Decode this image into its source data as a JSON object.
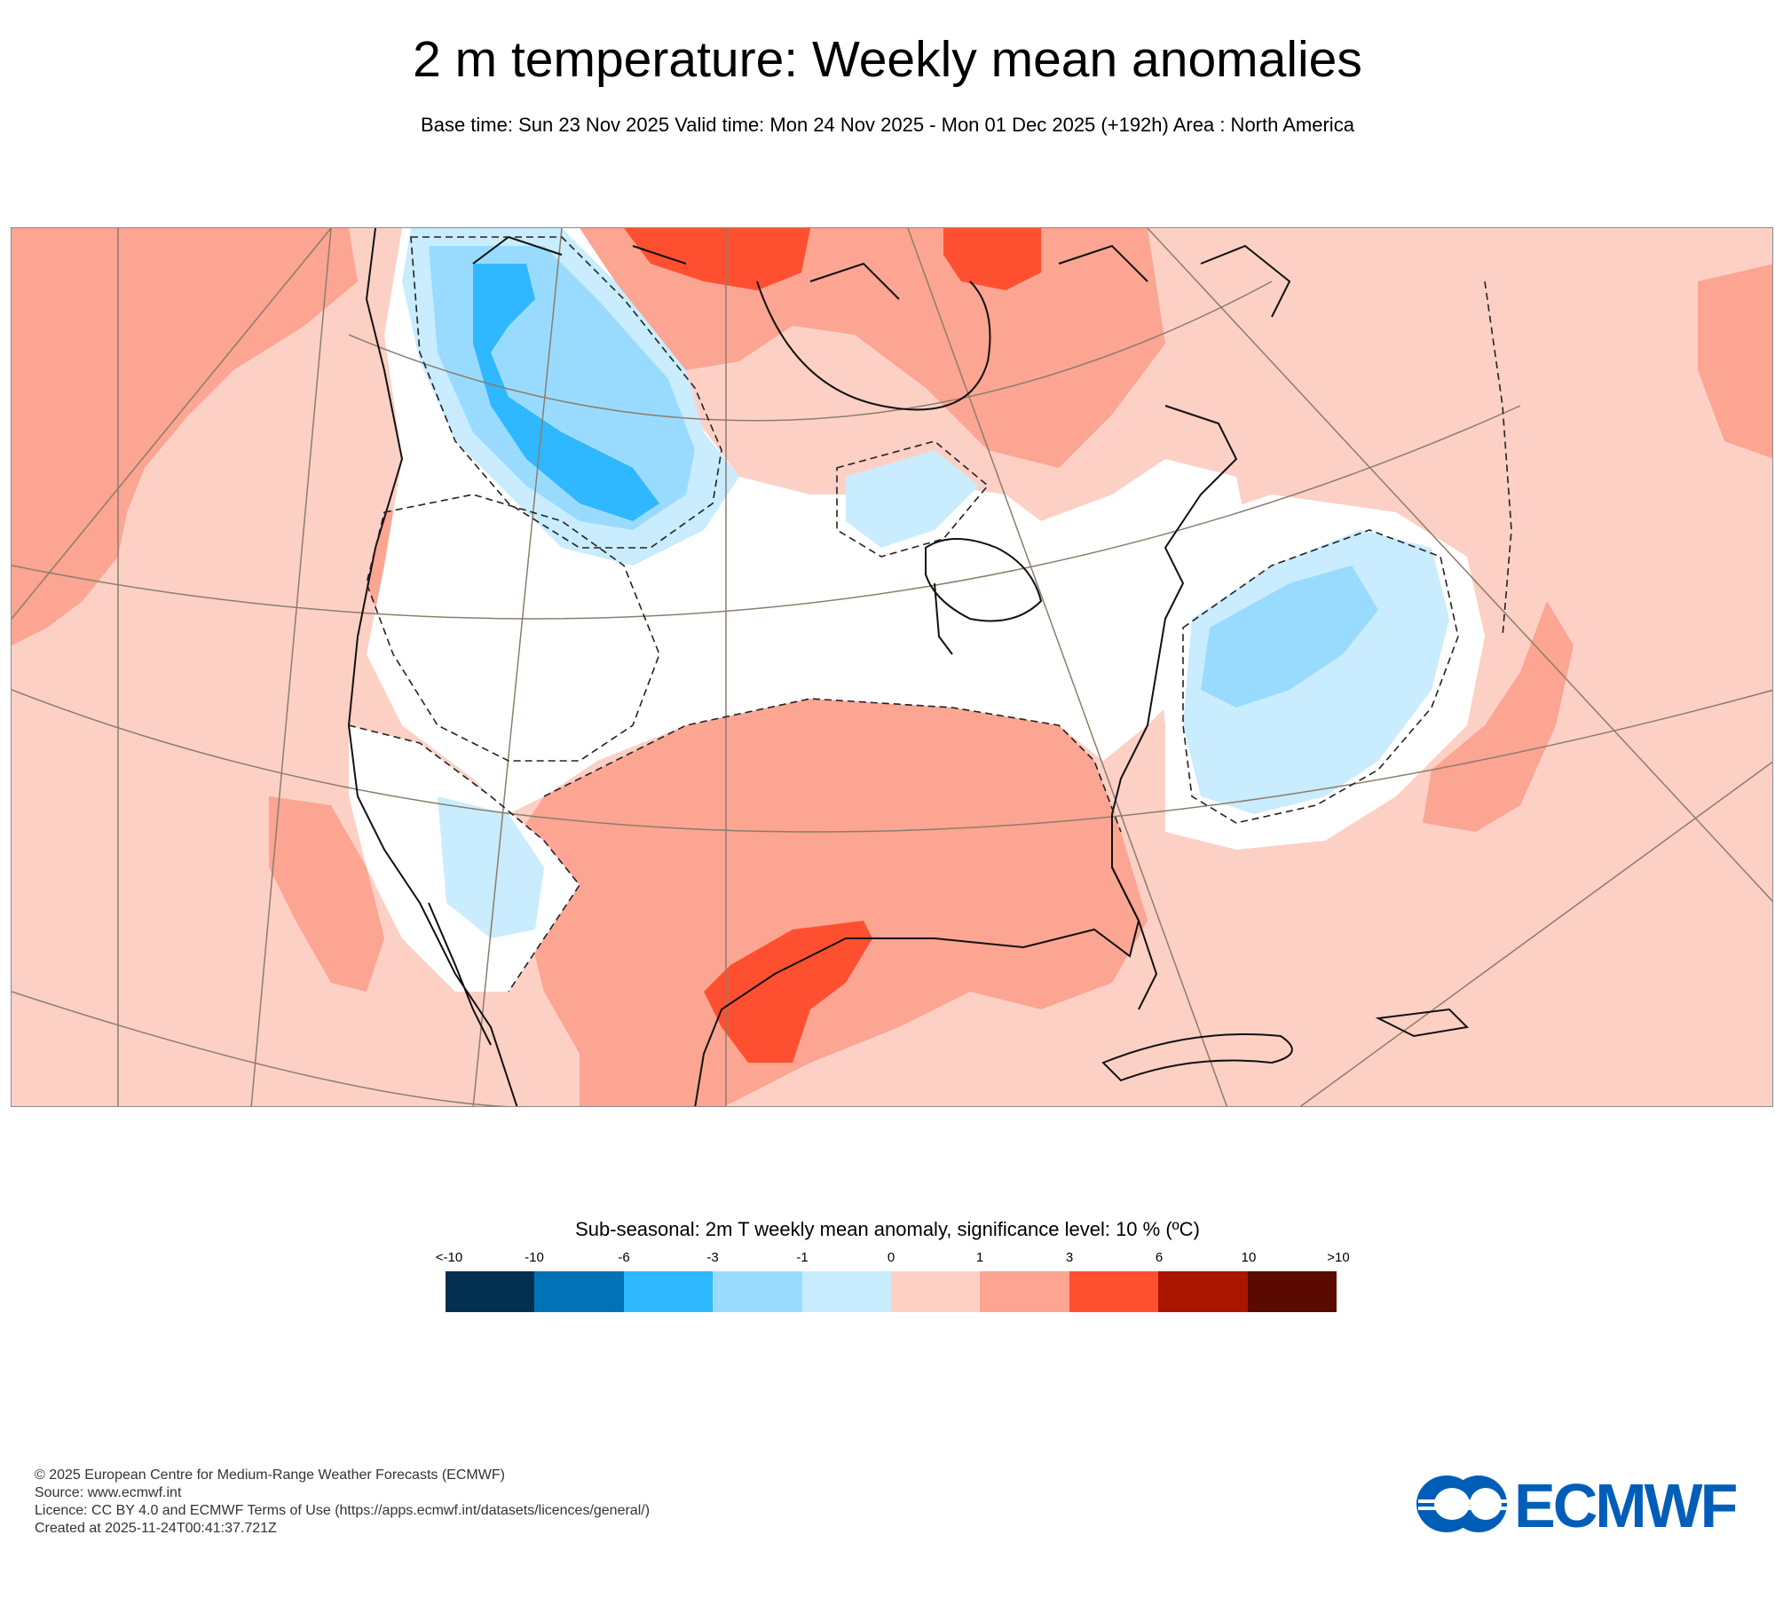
{
  "title": "2 m temperature: Weekly mean anomalies",
  "subtitle": "Base time: Sun 23 Nov 2025 Valid time: Mon 24 Nov 2025 - Mon 01 Dec 2025 (+192h) Area : North America",
  "map": {
    "region": "North America",
    "anomaly_colors": {
      "lt_minus10": "#04304f",
      "minus10_minus6": "#0072b5",
      "minus6_minus3": "#2fb8ff",
      "minus3_minus1": "#99dbff",
      "minus1_0": "#c9ecfe",
      "near_zero": "#ffffff",
      "zero_1": "#fdd0c6",
      "one_3": "#fba592",
      "three_6": "#fe5030",
      "six_10": "#ab1600",
      "gt_10": "#5b0a00"
    }
  },
  "legend": {
    "title": "Sub-seasonal: 2m T weekly mean anomaly, significance level: 10 % (ºC)",
    "ticks": [
      "<-10",
      "-10",
      "-6",
      "-3",
      "-1",
      "0",
      "1",
      "3",
      "6",
      "10",
      ">10"
    ],
    "colors": [
      "#04304f",
      "#0072b5",
      "#2fb8ff",
      "#99dbff",
      "#c9ecfe",
      "#fdd0c6",
      "#fba592",
      "#fe5030",
      "#ab1600",
      "#5b0a00"
    ]
  },
  "footer": {
    "copyright": "© 2025 European Centre for Medium-Range Weather Forecasts (ECMWF)",
    "source": "Source: www.ecmwf.int",
    "licence": "Licence: CC BY 4.0 and ECMWF Terms of Use (https://apps.ecmwf.int/datasets/licences/general/)",
    "created": "Created at 2025-11-24T00:41:37.721Z"
  },
  "logo": {
    "text": "ECMWF",
    "color": "#005eb8"
  }
}
